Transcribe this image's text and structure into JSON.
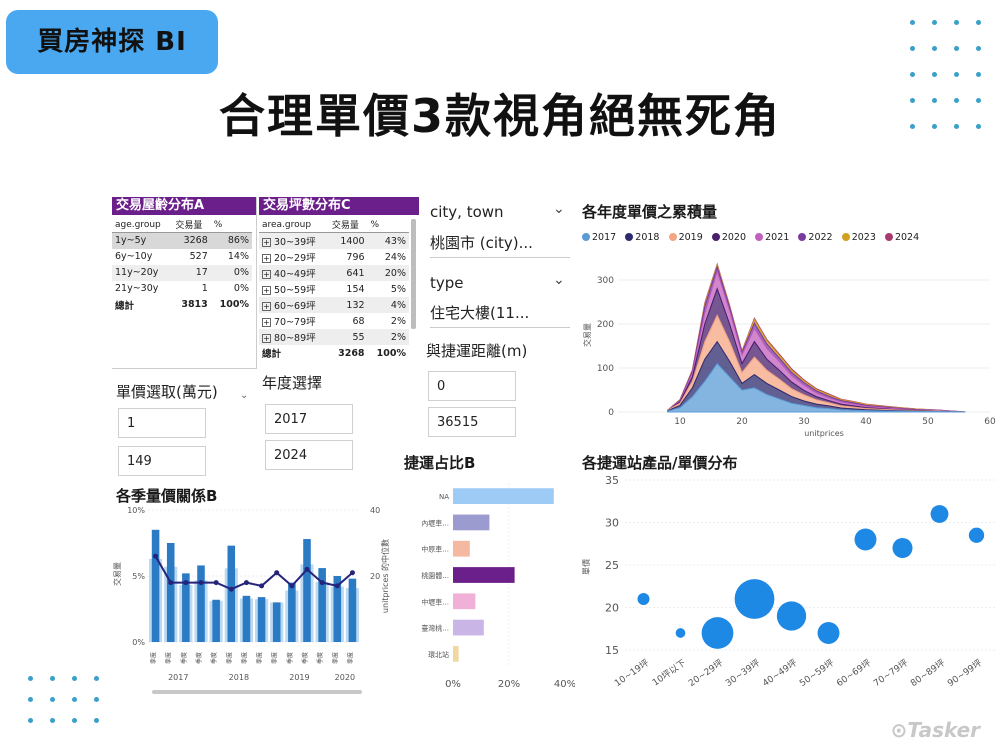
{
  "header": {
    "badge": "買房神探 BI",
    "headline": "合理單價3款視角絕無死角"
  },
  "age_table": {
    "title": "交易屋齡分布A",
    "columns": [
      "age.group",
      "交易量",
      "%"
    ],
    "rows": [
      {
        "group": "1y~5y",
        "count": "3268",
        "pct": "86%"
      },
      {
        "group": "6y~10y",
        "count": "527",
        "pct": "14%"
      },
      {
        "group": "11y~20y",
        "count": "17",
        "pct": "0%"
      },
      {
        "group": "21y~30y",
        "count": "1",
        "pct": "0%"
      }
    ],
    "total": {
      "group": "總計",
      "count": "3813",
      "pct": "100%"
    }
  },
  "area_table": {
    "title": "交易坪數分布C",
    "columns": [
      "area.group",
      "交易量",
      "%"
    ],
    "rows": [
      {
        "group": "30~39坪",
        "count": "1400",
        "pct": "43%"
      },
      {
        "group": "20~29坪",
        "count": "796",
        "pct": "24%"
      },
      {
        "group": "40~49坪",
        "count": "641",
        "pct": "20%"
      },
      {
        "group": "50~59坪",
        "count": "154",
        "pct": "5%"
      },
      {
        "group": "60~69坪",
        "count": "132",
        "pct": "4%"
      },
      {
        "group": "70~79坪",
        "count": "68",
        "pct": "2%"
      },
      {
        "group": "80~89坪",
        "count": "55",
        "pct": "2%"
      }
    ],
    "total": {
      "group": "總計",
      "count": "3268",
      "pct": "100%"
    }
  },
  "slicers": {
    "city_label": "city, town",
    "city_value": "桃園市 (city)...",
    "type_label": "type",
    "type_value": "住宅大樓(11...",
    "mrt_label": "與捷運距離(m)",
    "mrt_min": "0",
    "mrt_max": "36515",
    "price_label": "單價選取(萬元)",
    "price_min": "1",
    "price_max": "149",
    "year_label": "年度選擇",
    "year_min": "2017",
    "year_max": "2024"
  },
  "area_chart": {
    "title": "各年度單價之累積量",
    "legend": [
      {
        "name": "2017",
        "color": "#5b9bd5"
      },
      {
        "name": "2018",
        "color": "#2e2a6e"
      },
      {
        "name": "2019",
        "color": "#f4a582"
      },
      {
        "name": "2020",
        "color": "#4a1f6e"
      },
      {
        "name": "2021",
        "color": "#c05fbd"
      },
      {
        "name": "2022",
        "color": "#7a3aa0"
      },
      {
        "name": "2023",
        "color": "#d4a020"
      },
      {
        "name": "2024",
        "color": "#a83a6e"
      }
    ],
    "y_label": "交易量",
    "x_label": "unitprices",
    "y_ticks": [
      "0",
      "100",
      "200",
      "300"
    ],
    "x_ticks": [
      "10",
      "20",
      "30",
      "40",
      "50",
      "60"
    ]
  },
  "quarter_chart": {
    "title": "各季量價關係B",
    "left_ticks": [
      "0%",
      "5%",
      "10%"
    ],
    "right_ticks": [
      "20",
      "40"
    ],
    "left_label": "交易量",
    "right_label": "unitprices 的中位數",
    "years": [
      "2017",
      "2018",
      "2019",
      "2020"
    ],
    "quarter_label": "季度"
  },
  "mrt_chart": {
    "title": "捷運占比B",
    "categories": [
      "NA",
      "內壢車...",
      "中原車...",
      "桃園體...",
      "中壢車...",
      "臺灣桃...",
      "環北站"
    ],
    "colors": [
      "#9ecbf5",
      "#9c9bd0",
      "#f5b8a0",
      "#6b1f8a",
      "#f0b0d8",
      "#c9b6e6",
      "#f0d8a0"
    ],
    "values": [
      36,
      13,
      6,
      22,
      8,
      11,
      2
    ],
    "x_ticks": [
      "0%",
      "20%",
      "40%"
    ]
  },
  "bubble_chart": {
    "title": "各捷運站產品/單價分布",
    "y_label": "單價",
    "y_ticks": [
      "15",
      "20",
      "25",
      "30",
      "35"
    ],
    "categories": [
      "10~19坪",
      "10坪以下",
      "20~29坪",
      "30~39坪",
      "40~49坪",
      "50~59坪",
      "60~69坪",
      "70~79坪",
      "80~89坪",
      "90~99坪"
    ]
  },
  "chart_data": [
    {
      "type": "area",
      "title": "各年度單價之累積量",
      "xlabel": "unitprices",
      "ylabel": "交易量",
      "xlim": [
        0,
        60
      ],
      "ylim": [
        0,
        350
      ],
      "x": [
        8,
        10,
        12,
        14,
        16,
        18,
        20,
        22,
        24,
        26,
        28,
        30,
        32,
        34,
        36,
        38,
        40,
        44,
        48,
        52,
        56
      ],
      "series": [
        {
          "name": "2017",
          "values": [
            2,
            10,
            35,
            70,
            110,
            80,
            50,
            55,
            40,
            30,
            20,
            15,
            10,
            8,
            5,
            4,
            3,
            2,
            1,
            1,
            0
          ]
        },
        {
          "name": "2018",
          "values": [
            1,
            5,
            20,
            50,
            50,
            35,
            15,
            30,
            25,
            20,
            15,
            10,
            8,
            6,
            4,
            3,
            2,
            1,
            1,
            0,
            0
          ]
        },
        {
          "name": "2019",
          "values": [
            1,
            5,
            15,
            40,
            60,
            45,
            25,
            40,
            30,
            25,
            18,
            14,
            10,
            7,
            5,
            4,
            3,
            2,
            1,
            1,
            0
          ]
        },
        {
          "name": "2020",
          "values": [
            0,
            3,
            10,
            40,
            60,
            40,
            20,
            35,
            25,
            20,
            15,
            10,
            7,
            5,
            4,
            3,
            2,
            1,
            1,
            0,
            0
          ]
        },
        {
          "name": "2021",
          "values": [
            0,
            2,
            8,
            25,
            40,
            30,
            20,
            30,
            25,
            20,
            15,
            12,
            8,
            6,
            5,
            4,
            3,
            2,
            1,
            1,
            0
          ]
        },
        {
          "name": "2022",
          "values": [
            0,
            2,
            5,
            15,
            10,
            8,
            6,
            12,
            10,
            8,
            7,
            6,
            5,
            4,
            3,
            3,
            2,
            2,
            1,
            1,
            0
          ]
        },
        {
          "name": "2023",
          "values": [
            0,
            1,
            2,
            5,
            4,
            3,
            2,
            8,
            7,
            6,
            5,
            4,
            3,
            3,
            2,
            2,
            2,
            1,
            1,
            0,
            0
          ]
        },
        {
          "name": "2024",
          "values": [
            0,
            0,
            1,
            3,
            2,
            2,
            1,
            3,
            3,
            3,
            3,
            2,
            2,
            2,
            1,
            1,
            1,
            1,
            0,
            0,
            0
          ]
        }
      ]
    },
    {
      "type": "bar",
      "title": "各季量價關係B",
      "categories": [
        "2017Q1",
        "2017Q2",
        "2017Q3",
        "2017Q4",
        "2018Q1",
        "2018Q2",
        "2018Q3",
        "2018Q4",
        "2019Q1",
        "2019Q2",
        "2019Q3",
        "2019Q4",
        "2020Q1",
        "2020Q2"
      ],
      "ylim": [
        0,
        10
      ],
      "y2lim": [
        0,
        40
      ],
      "series": [
        {
          "name": "交易量",
          "values": [
            8.5,
            7.5,
            5.2,
            5.8,
            3.2,
            7.3,
            3.5,
            3.4,
            3.0,
            4.5,
            7.8,
            5.6,
            5.0,
            4.8
          ]
        },
        {
          "name": "unitprices 的中位數",
          "values": [
            26,
            18,
            18,
            18,
            18,
            16,
            18,
            17,
            21,
            17,
            22,
            18,
            17,
            21
          ]
        }
      ]
    },
    {
      "type": "bar",
      "title": "捷運占比B",
      "categories": [
        "NA",
        "內壢車...",
        "中原車...",
        "桃園體...",
        "中壢車...",
        "臺灣桃...",
        "環北站"
      ],
      "values": [
        36,
        13,
        6,
        22,
        8,
        11,
        2
      ],
      "xlim": [
        0,
        40
      ]
    },
    {
      "type": "scatter",
      "title": "各捷運站產品/單價分布",
      "ylabel": "單價",
      "ylim": [
        15,
        35
      ],
      "categories": [
        "10~19坪",
        "10坪以下",
        "20~29坪",
        "30~39坪",
        "40~49坪",
        "50~59坪",
        "60~69坪",
        "70~79坪",
        "80~89坪",
        "90~99坪"
      ],
      "values": [
        21,
        17,
        17,
        21,
        19,
        17,
        28,
        27,
        31,
        28.5
      ],
      "sizes": [
        1,
        0.5,
        12,
        20,
        10,
        5,
        5,
        4,
        3,
        2
      ]
    }
  ],
  "watermark": "Tasker"
}
